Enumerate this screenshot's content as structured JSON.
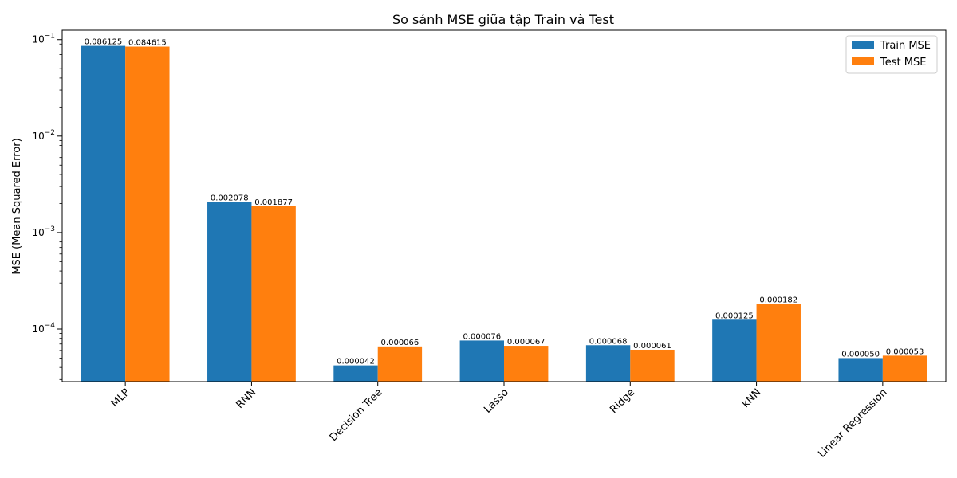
{
  "chart_data": {
    "type": "bar",
    "title": "So sánh MSE giữa tập Train và Test",
    "xlabel": "",
    "ylabel": "MSE (Mean Squared Error)",
    "yscale": "log",
    "ylim": [
      2.85e-05,
      0.125
    ],
    "yticks": [
      {
        "value": 0.0001,
        "base": "10",
        "exp": "−4"
      },
      {
        "value": 0.001,
        "base": "10",
        "exp": "−3"
      },
      {
        "value": 0.01,
        "base": "10",
        "exp": "−2"
      },
      {
        "value": 0.1,
        "base": "10",
        "exp": "−1"
      }
    ],
    "categories": [
      "MLP",
      "RNN",
      "Decision Tree",
      "Lasso",
      "Ridge",
      "kNN",
      "Linear Regression"
    ],
    "series": [
      {
        "name": "Train MSE",
        "color": "#1f77b4",
        "values": [
          0.086125,
          0.002078,
          4.2e-05,
          7.6e-05,
          6.8e-05,
          0.000125,
          5e-05
        ],
        "labels": [
          "0.086125",
          "0.002078",
          "0.000042",
          "0.000076",
          "0.000068",
          "0.000125",
          "0.000050"
        ]
      },
      {
        "name": "Test MSE",
        "color": "#ff7f0e",
        "values": [
          0.084615,
          0.001877,
          6.6e-05,
          6.7e-05,
          6.1e-05,
          0.000182,
          5.3e-05
        ],
        "labels": [
          "0.084615",
          "0.001877",
          "0.000066",
          "0.000067",
          "0.000061",
          "0.000182",
          "0.000053"
        ]
      }
    ],
    "legend": {
      "position": "top-right"
    },
    "grid": false
  }
}
